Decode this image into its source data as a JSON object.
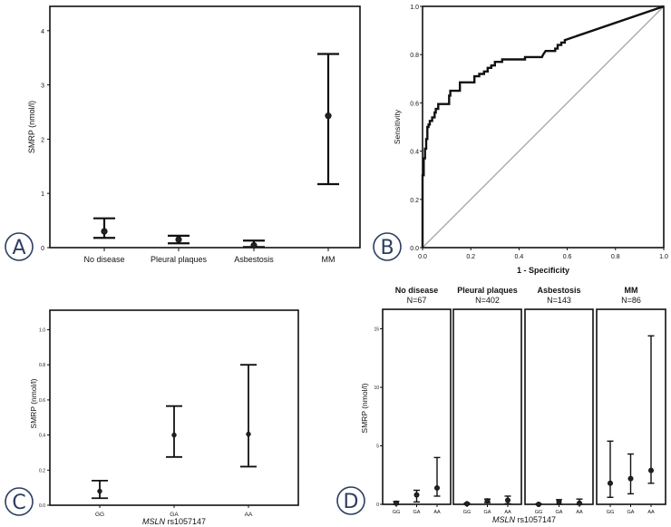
{
  "panels": {
    "A": {
      "label": "A"
    },
    "B": {
      "label": "B"
    },
    "C": {
      "label": "C"
    },
    "D": {
      "label": "D"
    }
  },
  "chart_data": [
    {
      "id": "A",
      "type": "errorbar",
      "title": "",
      "xlabel": "",
      "ylabel": "SMRP (nmol/l)",
      "ylim": [
        0,
        4.4
      ],
      "yticks": [
        0,
        1,
        2,
        3,
        4
      ],
      "categories": [
        "No disease",
        "Pleural plaques",
        "Asbestosis",
        "MM"
      ],
      "mean": [
        0.3,
        0.15,
        0.04,
        2.43
      ],
      "lower": [
        0.18,
        0.08,
        0.01,
        1.17
      ],
      "upper": [
        0.54,
        0.22,
        0.13,
        3.57
      ],
      "grid": false
    },
    {
      "id": "B",
      "type": "line",
      "title": "",
      "xlabel": "1 - Specificity",
      "ylabel": "Sensitivity",
      "xlim": [
        0,
        1
      ],
      "ylim": [
        0,
        1
      ],
      "xticks": [
        "0.0",
        "0.2",
        "0.4",
        "0.6",
        "0.8",
        "1.0"
      ],
      "yticks": [
        "0.0",
        "0.2",
        "0.4",
        "0.6",
        "0.8",
        "1.0"
      ],
      "series": [
        {
          "name": "ROC curve",
          "x": [
            0.0,
            0.0,
            0.005,
            0.005,
            0.01,
            0.01,
            0.015,
            0.015,
            0.02,
            0.02,
            0.025,
            0.025,
            0.03,
            0.03,
            0.04,
            0.04,
            0.05,
            0.05,
            0.055,
            0.055,
            0.065,
            0.065,
            0.11,
            0.11,
            0.115,
            0.115,
            0.155,
            0.155,
            0.215,
            0.215,
            0.235,
            0.235,
            0.255,
            0.255,
            0.27,
            0.27,
            0.285,
            0.285,
            0.3,
            0.3,
            0.33,
            0.33,
            0.425,
            0.425,
            0.495,
            0.5,
            0.51,
            0.55,
            0.55,
            0.56,
            0.56,
            0.575,
            0.575,
            0.59,
            0.59,
            1.0
          ],
          "y": [
            0.0,
            0.3,
            0.3,
            0.37,
            0.37,
            0.41,
            0.41,
            0.45,
            0.45,
            0.5,
            0.5,
            0.51,
            0.51,
            0.525,
            0.525,
            0.54,
            0.54,
            0.56,
            0.56,
            0.575,
            0.575,
            0.595,
            0.595,
            0.63,
            0.63,
            0.65,
            0.65,
            0.685,
            0.685,
            0.71,
            0.71,
            0.72,
            0.72,
            0.73,
            0.73,
            0.745,
            0.745,
            0.755,
            0.755,
            0.77,
            0.77,
            0.78,
            0.78,
            0.79,
            0.79,
            0.8,
            0.815,
            0.815,
            0.825,
            0.825,
            0.84,
            0.84,
            0.85,
            0.85,
            0.86,
            1.0
          ]
        },
        {
          "name": "Reference line",
          "x": [
            0,
            1
          ],
          "y": [
            0,
            1
          ]
        }
      ],
      "grid": false
    },
    {
      "id": "C",
      "type": "errorbar",
      "title": "",
      "xlabel_italic": "MSLN",
      "xlabel_rest": " rs1057147",
      "ylabel": "SMRP (nmol/l)",
      "ylim": [
        0,
        1.1
      ],
      "yticks": [
        "0.0",
        "0.2",
        "0.4",
        "0.6",
        "0.8",
        "1.0"
      ],
      "categories": [
        "GG",
        "GA",
        "AA"
      ],
      "mean": [
        0.08,
        0.4,
        0.405
      ],
      "lower": [
        0.04,
        0.275,
        0.22
      ],
      "upper": [
        0.14,
        0.565,
        0.8
      ],
      "grid": false
    },
    {
      "id": "D",
      "type": "errorbar",
      "title": "",
      "xlabel_italic": "MSLN",
      "xlabel_rest": " rs1057147",
      "ylabel": "SMRP (nmol/l)",
      "ylim": [
        0,
        16.8
      ],
      "yticks": [
        "0",
        "5",
        "10",
        "15"
      ],
      "categories": [
        "GG",
        "GA",
        "AA"
      ],
      "facets": [
        {
          "title": "No disease",
          "n": "N=67",
          "mean": [
            0.1,
            0.8,
            1.4
          ],
          "lower": [
            0.0,
            0.2,
            0.7
          ],
          "upper": [
            0.25,
            1.2,
            4.0
          ]
        },
        {
          "title": "Pleural plaques",
          "n": "N=402",
          "mean": [
            0.05,
            0.3,
            0.35
          ],
          "lower": [
            0.0,
            0.15,
            0.05
          ],
          "upper": [
            0.1,
            0.45,
            0.7
          ]
        },
        {
          "title": "Asbestosis",
          "n": "N=143",
          "mean": [
            0.0,
            0.2,
            0.1
          ],
          "lower": [
            0.0,
            0.0,
            0.0
          ],
          "upper": [
            0.05,
            0.4,
            0.45
          ]
        },
        {
          "title": "MM",
          "n": "N=86",
          "mean": [
            1.8,
            2.2,
            2.9
          ],
          "lower": [
            0.6,
            0.9,
            1.8
          ],
          "upper": [
            5.4,
            4.3,
            14.4
          ]
        }
      ],
      "grid": false
    }
  ]
}
